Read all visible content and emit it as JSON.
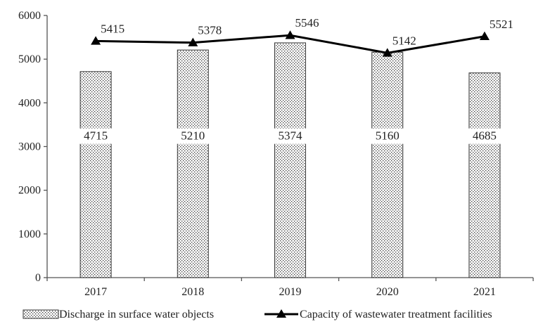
{
  "chart_data": {
    "type": "bar",
    "categories": [
      "2017",
      "2018",
      "2019",
      "2020",
      "2021"
    ],
    "series": [
      {
        "name": "Discharge in surface water objects",
        "kind": "bar",
        "values": [
          4715,
          5210,
          5374,
          5160,
          4685
        ],
        "style": "dotted fill"
      },
      {
        "name": "Capacity of wastewater treatment facilities",
        "kind": "line",
        "marker": "triangle",
        "values": [
          5415,
          5378,
          5546,
          5142,
          5521
        ]
      }
    ],
    "title": "",
    "xlabel": "",
    "ylabel": "",
    "ylim": [
      0,
      6000
    ],
    "yticks": [
      "0",
      "1000",
      "2000",
      "3000",
      "4000",
      "5000",
      "6000"
    ],
    "grid": false,
    "legend_position": "bottom",
    "colors": {
      "bar_fill": "#ffffff",
      "bar_dots": "#333333",
      "bar_border": "#333333",
      "line": "#000000",
      "axis": "#555555",
      "text": "#222222"
    }
  }
}
